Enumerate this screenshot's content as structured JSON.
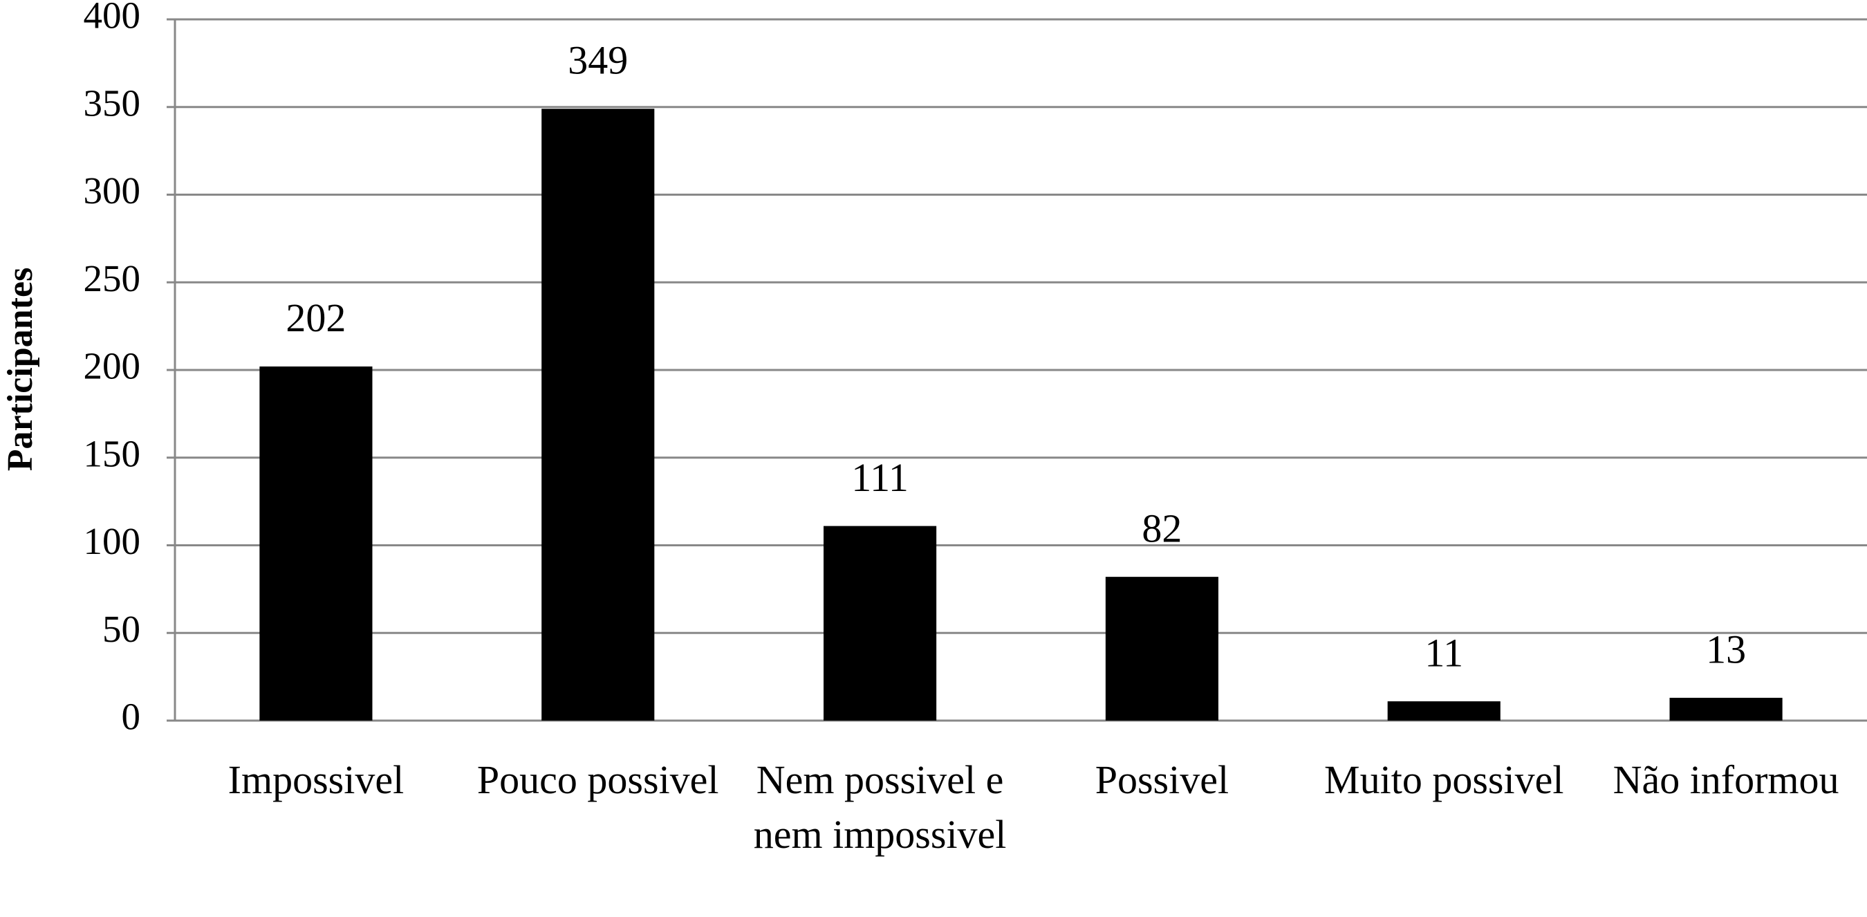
{
  "chart_data": {
    "type": "bar",
    "y_label": "Participantes",
    "categories": [
      "Impossivel",
      "Pouco possivel",
      "Nem possivel e nem impossivel",
      "Possivel",
      "Muito possivel",
      "Não informou"
    ],
    "values": [
      202,
      349,
      111,
      82,
      11,
      13
    ],
    "color": "#000000",
    "ylim": [
      0,
      400
    ],
    "yticks": [
      0,
      50,
      100,
      150,
      200,
      250,
      300,
      350,
      400
    ],
    "grid": true
  }
}
